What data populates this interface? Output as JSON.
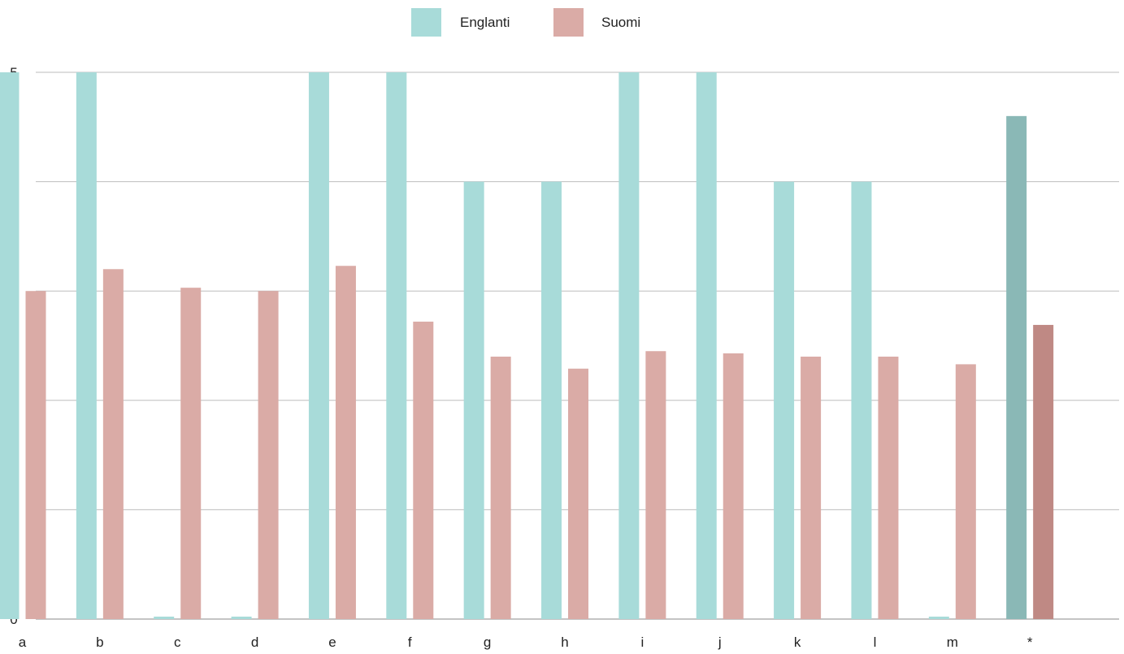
{
  "chart_data": {
    "type": "bar",
    "categories": [
      "a",
      "b",
      "c",
      "d",
      "e",
      "f",
      "g",
      "h",
      "i",
      "j",
      "k",
      "l",
      "m",
      "*"
    ],
    "series": [
      {
        "name": "Englanti",
        "color": "#a8dbd9",
        "highlight_color": "#8ab8b6",
        "values": [
          5,
          5,
          0,
          0,
          5,
          5,
          4,
          4,
          5,
          5,
          4,
          4,
          0,
          4.6
        ]
      },
      {
        "name": "Suomi",
        "color": "#daaba6",
        "highlight_color": "#bf8984",
        "values": [
          3.0,
          3.2,
          3.03,
          3.0,
          3.23,
          2.72,
          2.4,
          2.29,
          2.45,
          2.43,
          2.4,
          2.4,
          2.33,
          2.69
        ]
      }
    ],
    "highlight_category": "*",
    "ylim": [
      0,
      5
    ],
    "yticks": [
      "0",
      "1",
      "2",
      "3",
      "4",
      "5"
    ],
    "grid": true,
    "legend_position": "top-center",
    "gridline_color": "#bdbdbd",
    "axis_color": "#888888",
    "title": "",
    "xlabel": "",
    "ylabel": ""
  }
}
